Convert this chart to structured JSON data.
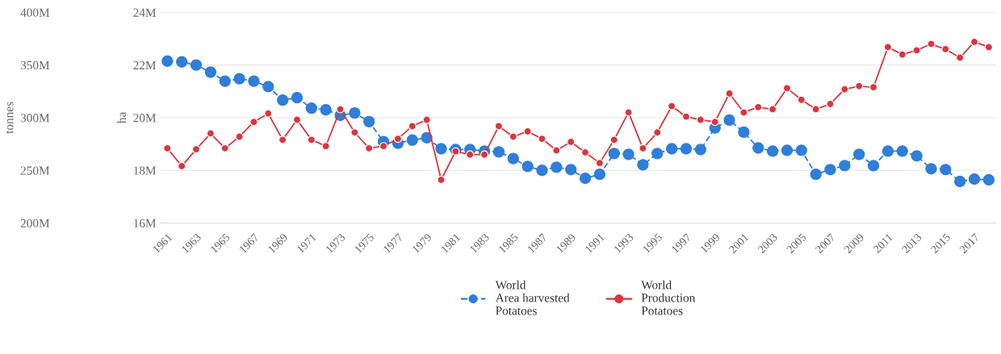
{
  "chart_data": {
    "type": "line",
    "x": [
      1961,
      1962,
      1963,
      1964,
      1965,
      1966,
      1967,
      1968,
      1969,
      1970,
      1971,
      1972,
      1973,
      1974,
      1975,
      1976,
      1977,
      1978,
      1979,
      1980,
      1981,
      1982,
      1983,
      1984,
      1985,
      1986,
      1987,
      1988,
      1989,
      1990,
      1991,
      1992,
      1993,
      1994,
      1995,
      1996,
      1997,
      1998,
      1999,
      2000,
      2001,
      2002,
      2003,
      2004,
      2005,
      2006,
      2007,
      2008,
      2009,
      2010,
      2011,
      2012,
      2013,
      2014,
      2015,
      2016,
      2017,
      2018
    ],
    "series": [
      {
        "name": "World\nArea harvested\nPotatoes",
        "color": "#2f7ed8",
        "axis": "y2",
        "line_style": "dashed",
        "values": [
          22.15,
          22.12,
          22.0,
          21.73,
          21.39,
          21.48,
          21.39,
          21.18,
          20.67,
          20.76,
          20.36,
          20.3,
          20.09,
          20.18,
          19.85,
          19.09,
          19.03,
          19.15,
          19.24,
          18.82,
          18.79,
          18.79,
          18.73,
          18.7,
          18.45,
          18.15,
          18.0,
          18.12,
          18.03,
          17.7,
          17.85,
          18.64,
          18.61,
          18.21,
          18.64,
          18.82,
          18.82,
          18.79,
          19.61,
          19.91,
          19.45,
          18.85,
          18.73,
          18.76,
          18.76,
          17.85,
          18.03,
          18.18,
          18.61,
          18.18,
          18.73,
          18.73,
          18.55,
          18.06,
          18.03,
          17.58,
          17.67,
          17.64
        ]
      },
      {
        "name": "World\nProduction\nPotatoes",
        "color": "#d9363e",
        "axis": "y",
        "line_style": "solid",
        "values": [
          271,
          254,
          270,
          285,
          271,
          282,
          296,
          304,
          279,
          298,
          279,
          273,
          308,
          286,
          271,
          273,
          280,
          292,
          298,
          241,
          268,
          265,
          265,
          292,
          282,
          287,
          280,
          269,
          277,
          267,
          257,
          279,
          305,
          271,
          286,
          311,
          301,
          298,
          296,
          323,
          305,
          310,
          308,
          328,
          317,
          308,
          313,
          327,
          330,
          329,
          367,
          360,
          364,
          370,
          365,
          357,
          372,
          367
        ]
      }
    ],
    "ylabel": "tonnes",
    "y2label": "ha",
    "ylim": [
      200,
      400
    ],
    "yticks": [
      {
        "value": 200,
        "label": "200M"
      },
      {
        "value": 250,
        "label": "250M"
      },
      {
        "value": 300,
        "label": "300M"
      },
      {
        "value": 350,
        "label": "350M"
      },
      {
        "value": 400,
        "label": "400M"
      }
    ],
    "y2lim": [
      16,
      24
    ],
    "y2ticks": [
      {
        "value": 16,
        "label": "16M"
      },
      {
        "value": 18,
        "label": "18M"
      },
      {
        "value": 20,
        "label": "20M"
      },
      {
        "value": 22,
        "label": "22M"
      },
      {
        "value": 24,
        "label": "24M"
      }
    ],
    "xlim": [
      1960.5,
      2018.5
    ],
    "xticks": [
      1961,
      1963,
      1965,
      1967,
      1969,
      1971,
      1973,
      1975,
      1977,
      1979,
      1981,
      1983,
      1985,
      1987,
      1989,
      1991,
      1993,
      1995,
      1997,
      1999,
      2001,
      2003,
      2005,
      2007,
      2009,
      2011,
      2013,
      2015,
      2017
    ],
    "grid": "y",
    "legend": "bottom",
    "marker": "circle"
  }
}
